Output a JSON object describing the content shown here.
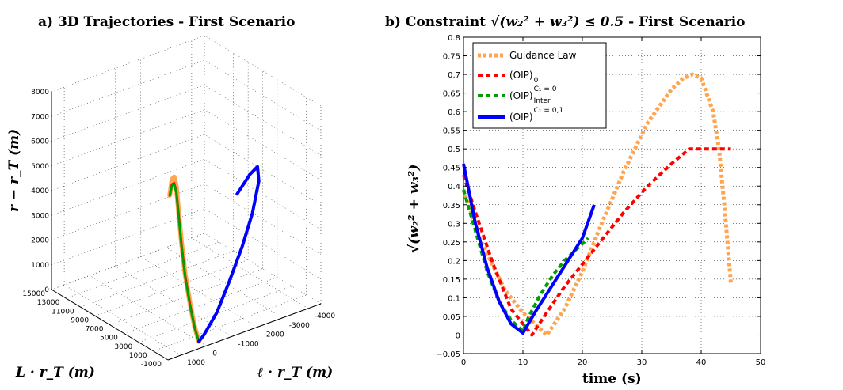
{
  "chart_data": [
    {
      "type": "line",
      "panel": "a",
      "title": "a) 3D Trajectories - First Scenario",
      "xlabel": "L · r_T  (m)",
      "ylabel": "ℓ · r_T  (m)",
      "zlabel": "r − r_T  (m)",
      "x_ticks": [
        "15000",
        "13000",
        "11000",
        "9000",
        "7000",
        "5000",
        "3000",
        "1000",
        "-1000"
      ],
      "y_ticks": [
        "1000",
        "0",
        "-1000",
        "-2000",
        "-3000",
        "-4000"
      ],
      "z_ticks": [
        "0",
        "1000",
        "2000",
        "3000",
        "4000",
        "5000",
        "6000",
        "7000",
        "8000"
      ],
      "zlim": [
        0,
        8000
      ],
      "grid": true,
      "series": [
        {
          "name": "Guidance Law",
          "color": "#ffa54f",
          "x": [
            4000,
            3700,
            3400,
            3100,
            2800,
            2400,
            1900,
            1200,
            600,
            100,
            0
          ],
          "y": [
            0,
            0,
            0,
            0,
            0,
            0,
            0,
            0,
            0,
            0,
            0
          ],
          "z": [
            5200,
            5900,
            6050,
            5700,
            4800,
            3600,
            2400,
            1300,
            500,
            80,
            0
          ]
        },
        {
          "name": "(OIP)_0",
          "color": "#ff0000",
          "x": [
            4000,
            3700,
            3400,
            3100,
            2800,
            2400,
            1900,
            1200,
            600,
            100,
            0
          ],
          "y": [
            0,
            0,
            0,
            0,
            0,
            0,
            0,
            0,
            0,
            0,
            0
          ],
          "z": [
            5200,
            5700,
            5800,
            5500,
            4700,
            3500,
            2350,
            1250,
            480,
            70,
            0
          ]
        },
        {
          "name": "(OIP)_Inter^{C_1 = 0}",
          "color": "#00a000",
          "x": [
            4000,
            3700,
            3400,
            3100,
            2800,
            2400,
            1900,
            1200,
            600,
            100,
            0
          ],
          "y": [
            0,
            0,
            0,
            0,
            0,
            0,
            0,
            0,
            0,
            0,
            0
          ],
          "z": [
            5200,
            5650,
            5750,
            5450,
            4650,
            3450,
            2300,
            1200,
            450,
            60,
            0
          ]
        },
        {
          "name": "(OIP)^{C_1 = 0,1}",
          "color": "#0000ff",
          "x": [
            0,
            0,
            0,
            0,
            0,
            0,
            0,
            0,
            0,
            0
          ],
          "y": [
            -1500,
            -2000,
            -2300,
            -2350,
            -2100,
            -1700,
            -1200,
            -700,
            -200,
            0
          ],
          "z": [
            5400,
            6000,
            6200,
            5600,
            4400,
            3200,
            2000,
            900,
            200,
            0
          ]
        }
      ]
    },
    {
      "type": "line",
      "panel": "b",
      "title": "b) Constraint",
      "title_math": "√(w₂² + w₃²) ≤ 0.5",
      "title_suffix": " - First Scenario",
      "xlabel": "time  (s)",
      "ylabel": "√(w₂² + w₃²)",
      "xlim": [
        0,
        50
      ],
      "ylim": [
        -0.05,
        0.8
      ],
      "x_ticks": [
        "0",
        "10",
        "20",
        "30",
        "40",
        "50"
      ],
      "y_ticks": [
        "−0.05",
        "0",
        "0.05",
        "0.1",
        "0.15",
        "0.2",
        "0.25",
        "0.3",
        "0.35",
        "0.4",
        "0.45",
        "0.5",
        "0.55",
        "0.6",
        "0.65",
        "0.7",
        "0.75",
        "0.8"
      ],
      "grid": true,
      "legend_position": "top-left",
      "series": [
        {
          "name": "Guidance Law",
          "sub": "",
          "sup": "",
          "color": "#ffa54f",
          "style": "dotted",
          "x": [
            0,
            3,
            7,
            10,
            12,
            14,
            17,
            20,
            23,
            27,
            31,
            35,
            37,
            38.5,
            40,
            42,
            43,
            44,
            45
          ],
          "y": [
            0.39,
            0.25,
            0.12,
            0.06,
            0.03,
            0.0,
            0.07,
            0.17,
            0.29,
            0.44,
            0.57,
            0.66,
            0.69,
            0.7,
            0.69,
            0.6,
            0.5,
            0.33,
            0.14
          ]
        },
        {
          "name": "(OIP)",
          "sub": "0",
          "sup": "",
          "color": "#ff0000",
          "style": "dashed",
          "x": [
            0,
            2,
            5,
            8,
            10,
            11.5,
            14,
            17,
            20,
            23,
            27,
            31,
            35,
            38,
            45
          ],
          "y": [
            0.43,
            0.33,
            0.19,
            0.07,
            0.03,
            0.0,
            0.06,
            0.13,
            0.19,
            0.25,
            0.33,
            0.4,
            0.46,
            0.5,
            0.5
          ]
        },
        {
          "name": "(OIP)",
          "sub": "Inter",
          "sup": "C₁ = 0",
          "color": "#00a000",
          "style": "dashed",
          "x": [
            0,
            2,
            4,
            6,
            8,
            10,
            11,
            13,
            15,
            17,
            19,
            21
          ],
          "y": [
            0.39,
            0.28,
            0.17,
            0.09,
            0.04,
            0.01,
            0.05,
            0.11,
            0.16,
            0.2,
            0.23,
            0.26
          ]
        },
        {
          "name": "(OIP)",
          "sub": "",
          "sup": "C₁ = 0,1",
          "color": "#0000ff",
          "style": "solid",
          "x": [
            0,
            2,
            4,
            6,
            8,
            10,
            12,
            14,
            16,
            18,
            20,
            22
          ],
          "y": [
            0.46,
            0.3,
            0.18,
            0.09,
            0.03,
            0.005,
            0.06,
            0.11,
            0.16,
            0.21,
            0.26,
            0.35
          ]
        }
      ]
    }
  ]
}
